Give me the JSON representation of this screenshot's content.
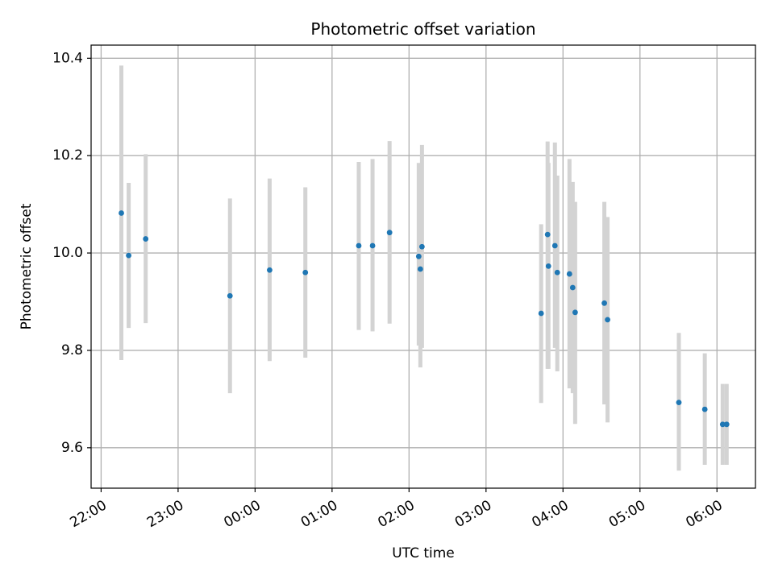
{
  "chart_data": {
    "type": "scatter",
    "title": "Photometric offset variation",
    "xlabel": "UTC time",
    "ylabel": "Photometric offset",
    "grid": true,
    "x_unit": "hours after 22:00 UTC",
    "xlim": [
      -0.13,
      8.5
    ],
    "ylim": [
      9.517,
      10.427
    ],
    "x_ticks": [
      {
        "value": 0,
        "label": "22:00"
      },
      {
        "value": 1,
        "label": "23:00"
      },
      {
        "value": 2,
        "label": "00:00"
      },
      {
        "value": 3,
        "label": "01:00"
      },
      {
        "value": 4,
        "label": "02:00"
      },
      {
        "value": 5,
        "label": "03:00"
      },
      {
        "value": 6,
        "label": "04:00"
      },
      {
        "value": 7,
        "label": "05:00"
      },
      {
        "value": 8,
        "label": "06:00"
      }
    ],
    "y_ticks": [
      {
        "value": 9.6,
        "label": "9.6"
      },
      {
        "value": 9.8,
        "label": "9.8"
      },
      {
        "value": 10.0,
        "label": "10.0"
      },
      {
        "value": 10.2,
        "label": "10.2"
      },
      {
        "value": 10.4,
        "label": "10.4"
      }
    ],
    "points": [
      {
        "x": 0.263,
        "y": 10.082,
        "lo": 9.78,
        "hi": 10.385
      },
      {
        "x": 0.358,
        "y": 9.995,
        "lo": 9.846,
        "hi": 10.144
      },
      {
        "x": 0.579,
        "y": 10.029,
        "lo": 9.856,
        "hi": 10.203
      },
      {
        "x": 1.674,
        "y": 9.912,
        "lo": 9.712,
        "hi": 10.112
      },
      {
        "x": 2.189,
        "y": 9.965,
        "lo": 9.778,
        "hi": 10.153
      },
      {
        "x": 2.653,
        "y": 9.96,
        "lo": 9.785,
        "hi": 10.135
      },
      {
        "x": 3.347,
        "y": 10.015,
        "lo": 9.842,
        "hi": 10.187
      },
      {
        "x": 3.526,
        "y": 10.015,
        "lo": 9.839,
        "hi": 10.193
      },
      {
        "x": 3.747,
        "y": 10.042,
        "lo": 9.855,
        "hi": 10.23
      },
      {
        "x": 4.126,
        "y": 9.993,
        "lo": 9.81,
        "hi": 10.185
      },
      {
        "x": 4.147,
        "y": 9.967,
        "lo": 9.765,
        "hi": 10.168
      },
      {
        "x": 4.168,
        "y": 10.013,
        "lo": 9.805,
        "hi": 10.222
      },
      {
        "x": 5.716,
        "y": 9.876,
        "lo": 9.692,
        "hi": 10.059
      },
      {
        "x": 5.8,
        "y": 10.038,
        "lo": 9.762,
        "hi": 10.229
      },
      {
        "x": 5.811,
        "y": 9.973,
        "lo": 9.762,
        "hi": 10.185
      },
      {
        "x": 5.895,
        "y": 10.015,
        "lo": 9.805,
        "hi": 10.227
      },
      {
        "x": 5.926,
        "y": 9.96,
        "lo": 9.757,
        "hi": 10.159
      },
      {
        "x": 6.084,
        "y": 9.957,
        "lo": 9.722,
        "hi": 10.193
      },
      {
        "x": 6.126,
        "y": 9.929,
        "lo": 9.712,
        "hi": 10.146
      },
      {
        "x": 6.158,
        "y": 9.878,
        "lo": 9.649,
        "hi": 10.105
      },
      {
        "x": 6.537,
        "y": 9.897,
        "lo": 9.689,
        "hi": 10.105
      },
      {
        "x": 6.579,
        "y": 9.863,
        "lo": 9.652,
        "hi": 10.074
      },
      {
        "x": 7.505,
        "y": 9.693,
        "lo": 9.553,
        "hi": 9.836
      },
      {
        "x": 7.842,
        "y": 9.679,
        "lo": 9.565,
        "hi": 9.794
      },
      {
        "x": 8.074,
        "y": 9.648,
        "lo": 9.565,
        "hi": 9.731
      },
      {
        "x": 8.126,
        "y": 9.648,
        "lo": 9.565,
        "hi": 9.731
      }
    ],
    "colors": {
      "point": "#1f77b4",
      "errorbar": "#d3d3d3",
      "grid": "#b0b0b0",
      "axis": "#000000"
    }
  }
}
